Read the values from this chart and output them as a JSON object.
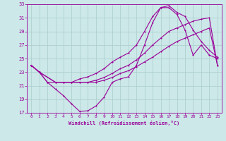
{
  "xlabel": "Windchill (Refroidissement éolien,°C)",
  "bg_color": "#cce8e8",
  "grid_color": "#aacccc",
  "line_color": "#990099",
  "xlim": [
    -0.5,
    23.5
  ],
  "ylim": [
    17,
    33
  ],
  "yticks": [
    17,
    19,
    21,
    23,
    25,
    27,
    29,
    31,
    33
  ],
  "xticks": [
    0,
    1,
    2,
    3,
    4,
    5,
    6,
    7,
    8,
    9,
    10,
    11,
    12,
    13,
    14,
    15,
    16,
    17,
    18,
    19,
    20,
    21,
    22,
    23
  ],
  "line1_x": [
    0,
    1,
    2,
    3,
    4,
    5,
    6,
    7,
    8,
    9,
    10,
    11,
    12,
    13,
    14,
    15,
    16,
    17,
    18,
    19,
    20,
    21,
    22,
    23
  ],
  "line1_y": [
    24.0,
    23.0,
    21.5,
    20.5,
    19.5,
    18.3,
    17.2,
    17.3,
    18.0,
    19.3,
    21.5,
    22.0,
    22.3,
    24.0,
    27.0,
    30.3,
    32.5,
    32.5,
    31.5,
    29.2,
    25.5,
    27.0,
    25.5,
    25.0
  ],
  "line2_x": [
    0,
    1,
    2,
    3,
    4,
    5,
    6,
    7,
    8,
    9,
    10,
    11,
    12,
    13,
    14,
    15,
    16,
    17,
    18,
    19,
    20,
    21,
    22,
    23
  ],
  "line2_y": [
    24.0,
    23.0,
    21.5,
    21.5,
    21.5,
    21.5,
    22.0,
    22.3,
    22.8,
    23.5,
    24.5,
    25.2,
    25.8,
    27.0,
    29.0,
    31.2,
    32.5,
    32.8,
    31.8,
    31.2,
    29.2,
    27.5,
    26.2,
    25.2
  ],
  "line3_x": [
    0,
    1,
    3,
    4,
    5,
    6,
    7,
    8,
    9,
    10,
    11,
    12,
    13,
    14,
    15,
    16,
    17,
    18,
    19,
    20,
    21,
    22,
    23
  ],
  "line3_y": [
    24.0,
    23.0,
    21.5,
    21.5,
    21.5,
    21.5,
    21.5,
    21.8,
    22.2,
    22.8,
    23.5,
    24.0,
    24.8,
    25.8,
    27.0,
    28.0,
    29.0,
    29.5,
    30.0,
    30.5,
    30.8,
    31.0,
    24.0
  ],
  "line4_x": [
    0,
    1,
    3,
    4,
    5,
    6,
    7,
    8,
    9,
    10,
    11,
    12,
    13,
    14,
    15,
    16,
    17,
    18,
    19,
    20,
    21,
    22,
    23
  ],
  "line4_y": [
    24.0,
    23.0,
    21.5,
    21.5,
    21.5,
    21.5,
    21.5,
    21.5,
    21.8,
    22.2,
    22.8,
    23.2,
    23.8,
    24.5,
    25.2,
    26.0,
    26.8,
    27.5,
    28.0,
    28.5,
    29.0,
    29.5,
    24.0
  ]
}
